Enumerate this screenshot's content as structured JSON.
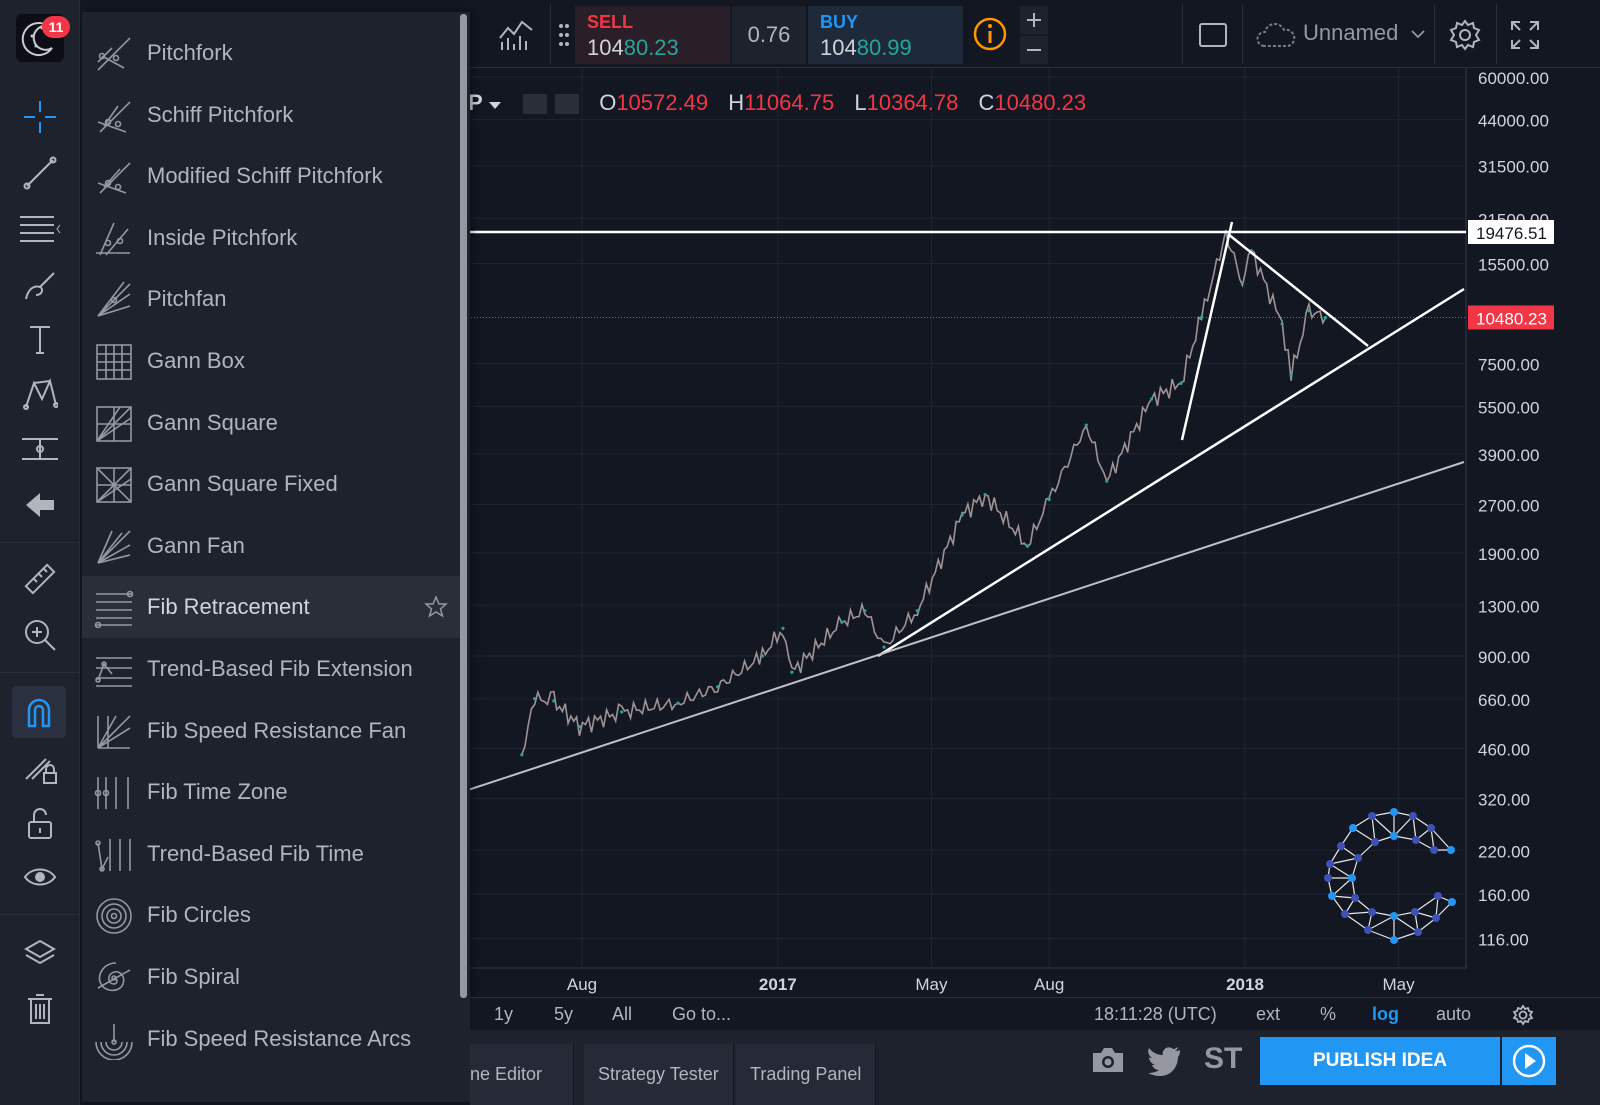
{
  "app": {
    "notification_count": "11",
    "brand_color": "#2196f3",
    "logo_icon": "crescent-logo-icon"
  },
  "left_toolbar": {
    "tools": [
      {
        "name": "crosshair-icon",
        "active": false
      },
      {
        "name": "trend-line-icon",
        "active": false
      },
      {
        "name": "fib-tools-icon",
        "active": false
      },
      {
        "name": "brush-icon",
        "active": false
      },
      {
        "name": "text-icon",
        "active": false
      },
      {
        "name": "pattern-icon",
        "active": false
      },
      {
        "name": "prediction-icon",
        "active": false
      },
      {
        "name": "back-arrow-icon",
        "active": false
      },
      {
        "name": "ruler-icon",
        "active": false
      },
      {
        "name": "zoom-in-icon",
        "active": false
      },
      {
        "name": "magnet-icon",
        "active": true
      },
      {
        "name": "lock-drawing-icon",
        "active": false
      },
      {
        "name": "unlock-icon",
        "active": false
      },
      {
        "name": "eye-icon",
        "active": false
      },
      {
        "name": "layers-icon",
        "active": false
      },
      {
        "name": "trash-icon",
        "active": false
      }
    ]
  },
  "drawing_menu": {
    "items": [
      {
        "label": "Pitchfork",
        "icon": "pitchfork-icon"
      },
      {
        "label": "Schiff Pitchfork",
        "icon": "schiff-pitchfork-icon"
      },
      {
        "label": "Modified Schiff Pitchfork",
        "icon": "modified-schiff-pitchfork-icon"
      },
      {
        "label": "Inside Pitchfork",
        "icon": "inside-pitchfork-icon"
      },
      {
        "label": "Pitchfan",
        "icon": "pitchfan-icon"
      },
      {
        "label": "Gann Box",
        "icon": "gann-box-icon"
      },
      {
        "label": "Gann Square",
        "icon": "gann-square-icon"
      },
      {
        "label": "Gann Square Fixed",
        "icon": "gann-square-fixed-icon"
      },
      {
        "label": "Gann Fan",
        "icon": "gann-fan-icon"
      },
      {
        "label": "Fib Retracement",
        "icon": "fib-retracement-icon",
        "selected": true
      },
      {
        "label": "Trend-Based Fib Extension",
        "icon": "fib-extension-icon"
      },
      {
        "label": "Fib Speed Resistance Fan",
        "icon": "fib-speed-fan-icon"
      },
      {
        "label": "Fib Time Zone",
        "icon": "fib-time-zone-icon"
      },
      {
        "label": "Trend-Based Fib Time",
        "icon": "fib-time-icon"
      },
      {
        "label": "Fib Circles",
        "icon": "fib-circles-icon"
      },
      {
        "label": "Fib Spiral",
        "icon": "fib-spiral-icon"
      },
      {
        "label": "Fib Speed Resistance Arcs",
        "icon": "fib-arcs-icon"
      }
    ]
  },
  "top_bar": {
    "sell_label": "SELL",
    "sell_price_main": "104",
    "sell_price_hi": "80.23",
    "spread": "0.76",
    "buy_label": "BUY",
    "buy_price_main": "104",
    "buy_price_hi": "80.99",
    "layout_name": "Unnamed",
    "sell_color": "#f23645",
    "buy_color": "#2196f3"
  },
  "legend": {
    "symbol_fragment": "P",
    "o_label": "O",
    "o_value": "10572.49",
    "h_label": "H",
    "h_value": "11064.75",
    "l_label": "L",
    "l_value": "10364.78",
    "c_label": "C",
    "c_value": "10480.23"
  },
  "chart_data": {
    "type": "line",
    "scale": "log",
    "grid": true,
    "x_tick_labels": [
      "Aug",
      "2017",
      "May",
      "Aug",
      "2018",
      "May"
    ],
    "y_tick_labels": [
      "60000.00",
      "44000.00",
      "31500.00",
      "21500.00",
      "15500.00",
      "7500.00",
      "5500.00",
      "3900.00",
      "2700.00",
      "1900.00",
      "1300.00",
      "900.00",
      "660.00",
      "460.00",
      "320.00",
      "220.00",
      "160.00",
      "116.00"
    ],
    "ylim": [
      100,
      65000
    ],
    "horizontal_level": "19476.51",
    "last_price": "10480.23",
    "series": [
      {
        "x": [
          "2016-06-15",
          "2016-06-25",
          "2016-07-10",
          "2016-07-30",
          "2016-09-01",
          "2016-10-15",
          "2016-11-15",
          "2016-12-20",
          "2017-01-05",
          "2017-01-12",
          "2017-02-20",
          "2017-03-10",
          "2017-03-25",
          "2017-04-20",
          "2017-05-25",
          "2017-06-12",
          "2017-07-15",
          "2017-08-01",
          "2017-08-30",
          "2017-09-15",
          "2017-10-20",
          "2017-11-12",
          "2017-11-28",
          "2017-12-17",
          "2017-12-30",
          "2018-01-06",
          "2018-01-30",
          "2018-02-06",
          "2018-02-20",
          "2018-03-05"
        ],
        "values": [
          440,
          660,
          650,
          540,
          600,
          640,
          720,
          900,
          1100,
          800,
          1150,
          1250,
          960,
          1250,
          2500,
          2900,
          2000,
          2800,
          4800,
          3200,
          5800,
          6500,
          10500,
          19300,
          13500,
          17000,
          10000,
          6900,
          11000,
          10480
        ]
      }
    ]
  },
  "bottom_bar": {
    "range_1y": "1y",
    "range_5y": "5y",
    "range_all": "All",
    "goto": "Go to...",
    "clock": "18:11:28 (UTC)",
    "ext": "ext",
    "percent": "%",
    "log": "log",
    "auto": "auto"
  },
  "panel_tabs": {
    "tab_pine": "ne Editor",
    "tab_strategy": "Strategy Tester",
    "tab_trading": "Trading Panel",
    "publish": "PUBLISH IDEA",
    "social_st": "ST"
  }
}
